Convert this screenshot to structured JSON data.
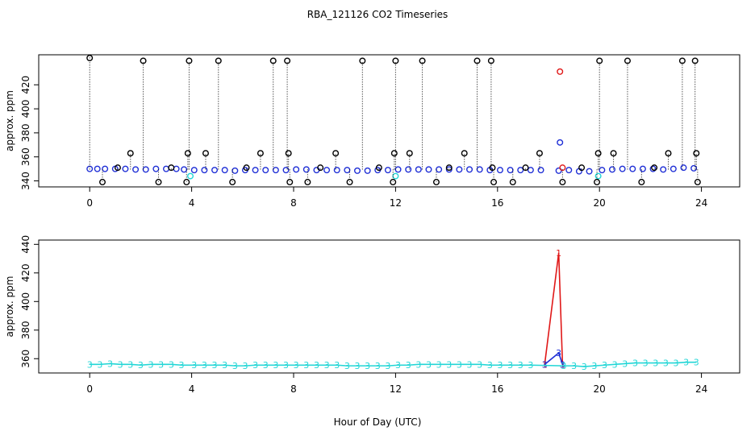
{
  "title": "RBA_121126  CO2 Timeseries",
  "colors": {
    "black": "#000000",
    "blue": "#1f2fd6",
    "red": "#e01818",
    "green": "#18b418",
    "cyan": "#22d6d6"
  },
  "chart_data": [
    {
      "type": "scatter",
      "ylabel": "approx. ppm",
      "xlim": [
        -2,
        25.5
      ],
      "ylim": [
        335,
        445
      ],
      "xticks": [
        "0",
        "4",
        "8",
        "12",
        "16",
        "20",
        "24"
      ],
      "yticks": [
        "340",
        "360",
        "380",
        "400",
        "420"
      ],
      "series": [
        {
          "color": "blue",
          "style": "markers",
          "points": [
            [
              0,
              350
            ],
            [
              0.3,
              350
            ],
            [
              0.6,
              350
            ],
            [
              1,
              350
            ],
            [
              1.4,
              350
            ],
            [
              1.8,
              349.5
            ],
            [
              2.2,
              349.5
            ],
            [
              2.6,
              350
            ],
            [
              3,
              350
            ],
            [
              3.4,
              350
            ],
            [
              3.7,
              349.5
            ],
            [
              4.1,
              349
            ],
            [
              4.5,
              349
            ],
            [
              4.9,
              349
            ],
            [
              5.3,
              349
            ],
            [
              5.7,
              348.5
            ],
            [
              6.1,
              349
            ],
            [
              6.5,
              349
            ],
            [
              6.9,
              349
            ],
            [
              7.3,
              349
            ],
            [
              7.7,
              349
            ],
            [
              8.1,
              349.5
            ],
            [
              8.5,
              349.5
            ],
            [
              8.9,
              349
            ],
            [
              9.3,
              349
            ],
            [
              9.7,
              349
            ],
            [
              10.1,
              349
            ],
            [
              10.5,
              348.5
            ],
            [
              10.9,
              348.5
            ],
            [
              11.3,
              349
            ],
            [
              11.7,
              349
            ],
            [
              12.1,
              349.5
            ],
            [
              12.5,
              349.5
            ],
            [
              12.9,
              349.5
            ],
            [
              13.3,
              349.5
            ],
            [
              13.7,
              349.5
            ],
            [
              14.1,
              349.5
            ],
            [
              14.5,
              349.5
            ],
            [
              14.9,
              349.5
            ],
            [
              15.3,
              349.5
            ],
            [
              15.7,
              349
            ],
            [
              16.1,
              349
            ],
            [
              16.5,
              349
            ],
            [
              16.9,
              349
            ],
            [
              17.3,
              349
            ],
            [
              17.7,
              349
            ],
            [
              18.4,
              348.5
            ],
            [
              18.8,
              349
            ],
            [
              19.2,
              348
            ],
            [
              19.6,
              348
            ],
            [
              20.1,
              349
            ],
            [
              20.5,
              349.5
            ],
            [
              20.9,
              350
            ],
            [
              21.3,
              350
            ],
            [
              21.7,
              350
            ],
            [
              22.1,
              350
            ],
            [
              22.5,
              349.5
            ],
            [
              22.9,
              350
            ],
            [
              23.3,
              351
            ],
            [
              23.7,
              350.5
            ]
          ]
        },
        {
          "color": "blue",
          "style": "markers",
          "points": [
            [
              18.45,
              372
            ]
          ]
        },
        {
          "color": "red",
          "style": "markers",
          "points": [
            [
              18.45,
              431
            ],
            [
              18.55,
              351
            ]
          ]
        },
        {
          "color": "cyan",
          "style": "markers",
          "points": [
            [
              3.95,
              344
            ],
            [
              12,
              344
            ],
            [
              19.95,
              344
            ]
          ]
        },
        {
          "color": "black",
          "style": "spikes",
          "points": [
            [
              0,
              445
            ],
            [
              0.5,
              339
            ],
            [
              1.1,
              351
            ],
            [
              1.6,
              363
            ],
            [
              2.1,
              440
            ],
            [
              2.7,
              339
            ],
            [
              3.2,
              351
            ],
            [
              3.8,
              339
            ],
            [
              3.85,
              363
            ],
            [
              3.9,
              440
            ],
            [
              4.55,
              363
            ],
            [
              5.05,
              440
            ],
            [
              5.6,
              339
            ],
            [
              6.15,
              351
            ],
            [
              6.7,
              363
            ],
            [
              7.2,
              440
            ],
            [
              7.75,
              440
            ],
            [
              7.8,
              363
            ],
            [
              7.85,
              339
            ],
            [
              8.55,
              339
            ],
            [
              9.05,
              351
            ],
            [
              9.65,
              363
            ],
            [
              10.2,
              339
            ],
            [
              10.7,
              440
            ],
            [
              11.35,
              351
            ],
            [
              11.9,
              339
            ],
            [
              11.95,
              363
            ],
            [
              12,
              440
            ],
            [
              12.55,
              363
            ],
            [
              13.05,
              440
            ],
            [
              13.6,
              339
            ],
            [
              14.1,
              351
            ],
            [
              14.7,
              363
            ],
            [
              15.2,
              440
            ],
            [
              15.75,
              440
            ],
            [
              15.8,
              351
            ],
            [
              15.85,
              339
            ],
            [
              16.6,
              339
            ],
            [
              17.1,
              351
            ],
            [
              17.65,
              363
            ],
            [
              18.55,
              339
            ],
            [
              19.3,
              351
            ],
            [
              19.9,
              339
            ],
            [
              19.95,
              363
            ],
            [
              20,
              440
            ],
            [
              20.55,
              363
            ],
            [
              21.1,
              440
            ],
            [
              21.65,
              339
            ],
            [
              22.15,
              351
            ],
            [
              22.7,
              363
            ],
            [
              23.25,
              440
            ],
            [
              23.75,
              440
            ],
            [
              23.8,
              363
            ],
            [
              23.85,
              339
            ]
          ]
        }
      ]
    },
    {
      "type": "line",
      "ylabel": "approx. ppm",
      "xlabel": "Hour of Day (UTC)",
      "xlim": [
        -2,
        25.5
      ],
      "ylim": [
        350,
        443
      ],
      "xticks": [
        "0",
        "4",
        "8",
        "12",
        "16",
        "20",
        "24"
      ],
      "yticks": [
        "360",
        "380",
        "400",
        "420",
        "440"
      ],
      "series": [
        {
          "color": "red",
          "symbol": "1",
          "points": [
            [
              17.85,
              356
            ],
            [
              18.4,
              434
            ],
            [
              18.55,
              356
            ]
          ]
        },
        {
          "color": "blue",
          "symbol": "3",
          "points": [
            [
              17.85,
              356
            ],
            [
              18.4,
              364
            ],
            [
              18.55,
              356
            ]
          ]
        },
        {
          "color": "cyan",
          "symbol": "3",
          "points": [
            [
              0,
              356
            ],
            [
              0.4,
              356
            ],
            [
              0.8,
              356.5
            ],
            [
              1.2,
              356
            ],
            [
              1.6,
              356
            ],
            [
              2,
              355.5
            ],
            [
              2.4,
              356
            ],
            [
              2.8,
              356
            ],
            [
              3.2,
              356
            ],
            [
              3.6,
              355.5
            ],
            [
              4.1,
              355.5
            ],
            [
              4.5,
              355.5
            ],
            [
              4.9,
              355.5
            ],
            [
              5.3,
              355.5
            ],
            [
              5.7,
              355
            ],
            [
              6.1,
              355
            ],
            [
              6.5,
              355.5
            ],
            [
              6.9,
              355.5
            ],
            [
              7.3,
              355.5
            ],
            [
              7.7,
              355.5
            ],
            [
              8.1,
              355.5
            ],
            [
              8.5,
              355.5
            ],
            [
              8.9,
              355.5
            ],
            [
              9.3,
              355.5
            ],
            [
              9.7,
              355.5
            ],
            [
              10.1,
              355
            ],
            [
              10.5,
              355
            ],
            [
              10.9,
              355
            ],
            [
              11.3,
              355
            ],
            [
              11.7,
              355
            ],
            [
              12.1,
              355.5
            ],
            [
              12.5,
              355.5
            ],
            [
              12.9,
              356
            ],
            [
              13.3,
              356
            ],
            [
              13.7,
              356
            ],
            [
              14.1,
              356
            ],
            [
              14.5,
              356
            ],
            [
              14.9,
              356
            ],
            [
              15.3,
              356
            ],
            [
              15.7,
              355.5
            ],
            [
              16.1,
              355.5
            ],
            [
              16.5,
              355.5
            ],
            [
              16.9,
              355.5
            ],
            [
              17.3,
              355.5
            ],
            [
              18.6,
              355
            ],
            [
              19,
              355
            ],
            [
              19.4,
              354.5
            ],
            [
              19.8,
              355
            ],
            [
              20.2,
              355.5
            ],
            [
              20.6,
              356
            ],
            [
              21,
              356.5
            ],
            [
              21.4,
              357
            ],
            [
              21.8,
              357
            ],
            [
              22.2,
              357
            ],
            [
              22.6,
              357
            ],
            [
              23,
              357
            ],
            [
              23.4,
              357.5
            ],
            [
              23.8,
              357.5
            ]
          ]
        }
      ]
    }
  ]
}
